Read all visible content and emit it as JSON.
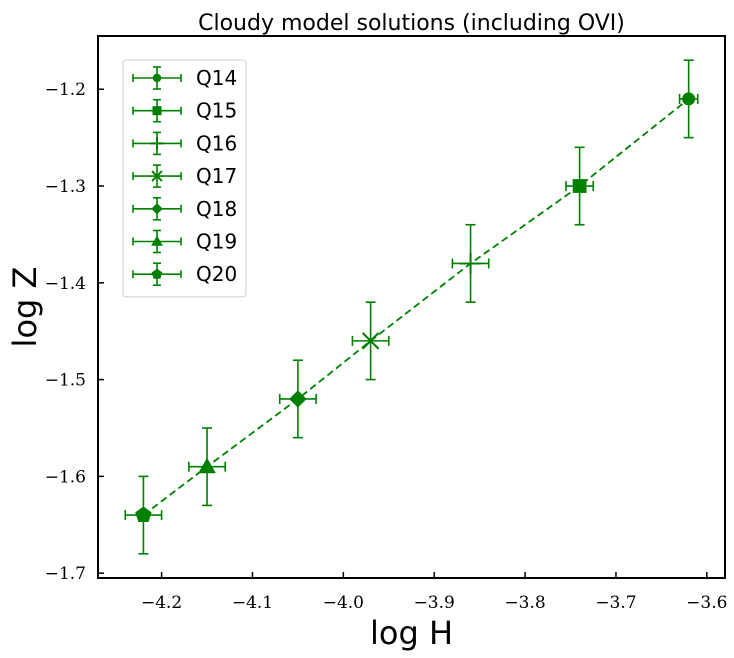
{
  "chart_data": {
    "type": "scatter",
    "title": "Cloudy model solutions (including OVI)",
    "xlabel": "log H",
    "ylabel": "log Z",
    "xlim": [
      -4.27,
      -3.58
    ],
    "ylim": [
      -1.705,
      -1.145
    ],
    "xticks": [
      -4.2,
      -4.1,
      -4.0,
      -3.9,
      -3.8,
      -3.7,
      -3.6
    ],
    "xtick_labels": [
      "−4.2",
      "−4.1",
      "−4.0",
      "−3.9",
      "−3.8",
      "−3.7",
      "−3.6"
    ],
    "yticks": [
      -1.7,
      -1.6,
      -1.5,
      -1.4,
      -1.3,
      -1.2
    ],
    "ytick_labels": [
      "−1.7",
      "−1.6",
      "−1.5",
      "−1.4",
      "−1.3",
      "−1.2"
    ],
    "color": "#008000",
    "legend_position": "upper-left",
    "series": [
      {
        "name": "Q14",
        "marker": "circle-small",
        "x": -3.62,
        "y": -1.21,
        "xerr": 0.01,
        "yerr": 0.04
      },
      {
        "name": "Q15",
        "marker": "square",
        "x": -3.74,
        "y": -1.3,
        "xerr": 0.015,
        "yerr": 0.04
      },
      {
        "name": "Q16",
        "marker": "plus",
        "x": -3.86,
        "y": -1.38,
        "xerr": 0.02,
        "yerr": 0.04
      },
      {
        "name": "Q17",
        "marker": "x",
        "x": -3.97,
        "y": -1.46,
        "xerr": 0.02,
        "yerr": 0.04
      },
      {
        "name": "Q18",
        "marker": "diamond",
        "x": -4.05,
        "y": -1.52,
        "xerr": 0.02,
        "yerr": 0.04
      },
      {
        "name": "Q19",
        "marker": "triangle",
        "x": -4.15,
        "y": -1.59,
        "xerr": 0.02,
        "yerr": 0.04
      },
      {
        "name": "Q20",
        "marker": "pentagon",
        "x": -4.22,
        "y": -1.64,
        "xerr": 0.02,
        "yerr": 0.04
      }
    ]
  }
}
